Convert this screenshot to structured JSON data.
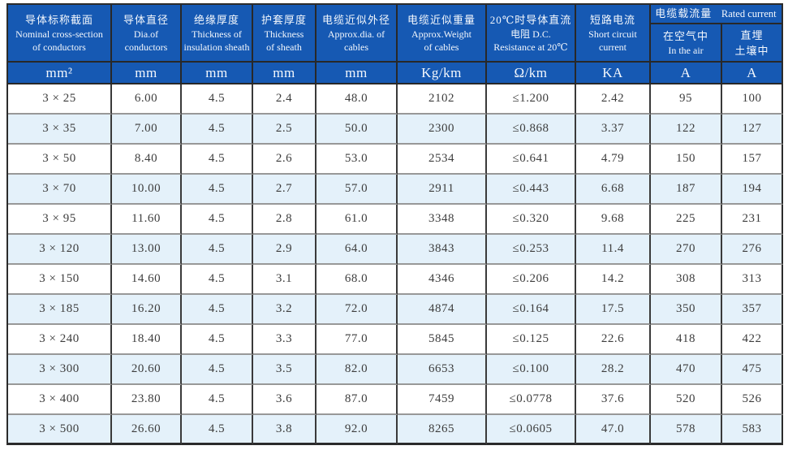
{
  "table": {
    "title_semantic": "cable-specification-table",
    "header": {
      "columns": [
        {
          "zh": "导体标称截面",
          "l2": "Nominal cross-section",
          "l3": "of conductors",
          "unit": "mm²"
        },
        {
          "zh": "导体直径",
          "l2": "Dia.of",
          "l3": "conductors",
          "unit": "mm"
        },
        {
          "zh": "绝缘厚度",
          "l2": "Thickness of",
          "l3": "insulation sheath",
          "unit": "mm"
        },
        {
          "zh": "护套厚度",
          "l2": "Thickness",
          "l3": "of sheath",
          "unit": "mm"
        },
        {
          "zh": "电缆近似外径",
          "l2": "Approx.dia. of",
          "l3": "cables",
          "unit": "mm"
        },
        {
          "zh": "电缆近似重量",
          "l2": "Approx.Weight",
          "l3": "of cables",
          "unit": "Kg/km"
        },
        {
          "zh": "20℃时导体直流",
          "l2": "电阻 D.C.",
          "l3": "Resistance at 20℃",
          "unit": "Ω/km"
        },
        {
          "zh": "短路电流",
          "l2": "Short circuit",
          "l3": "current",
          "unit": "KA"
        }
      ],
      "ampacity_group": {
        "zh": "电缆载流量",
        "en": "Rated current"
      },
      "sub_columns": [
        {
          "l1": "在空气中",
          "l2": "In the air",
          "unit": "A"
        },
        {
          "l1": "直埋",
          "l2": "土壤中",
          "unit": "A"
        }
      ]
    },
    "rows": [
      [
        "3 × 25",
        "6.00",
        "4.5",
        "2.4",
        "48.0",
        "2102",
        "≤1.200",
        "2.42",
        "95",
        "100"
      ],
      [
        "3 × 35",
        "7.00",
        "4.5",
        "2.5",
        "50.0",
        "2300",
        "≤0.868",
        "3.37",
        "122",
        "127"
      ],
      [
        "3 × 50",
        "8.40",
        "4.5",
        "2.6",
        "53.0",
        "2534",
        "≤0.641",
        "4.79",
        "150",
        "157"
      ],
      [
        "3 × 70",
        "10.00",
        "4.5",
        "2.7",
        "57.0",
        "2911",
        "≤0.443",
        "6.68",
        "187",
        "194"
      ],
      [
        "3 × 95",
        "11.60",
        "4.5",
        "2.8",
        "61.0",
        "3348",
        "≤0.320",
        "9.68",
        "225",
        "231"
      ],
      [
        "3 × 120",
        "13.00",
        "4.5",
        "2.9",
        "64.0",
        "3843",
        "≤0.253",
        "11.4",
        "270",
        "276"
      ],
      [
        "3 × 150",
        "14.60",
        "4.5",
        "3.1",
        "68.0",
        "4346",
        "≤0.206",
        "14.2",
        "308",
        "313"
      ],
      [
        "3 × 185",
        "16.20",
        "4.5",
        "3.2",
        "72.0",
        "4874",
        "≤0.164",
        "17.5",
        "350",
        "357"
      ],
      [
        "3 × 240",
        "18.40",
        "4.5",
        "3.3",
        "77.0",
        "5845",
        "≤0.125",
        "22.6",
        "418",
        "422"
      ],
      [
        "3 × 300",
        "20.60",
        "4.5",
        "3.5",
        "82.0",
        "6653",
        "≤0.100",
        "28.2",
        "470",
        "475"
      ],
      [
        "3 × 400",
        "23.80",
        "4.5",
        "3.6",
        "87.0",
        "7459",
        "≤0.0778",
        "37.6",
        "520",
        "526"
      ],
      [
        "3 × 500",
        "26.60",
        "4.5",
        "3.8",
        "92.0",
        "8265",
        "≤0.0605",
        "47.0",
        "578",
        "583"
      ]
    ],
    "colors": {
      "header_bg": "#1659b3",
      "stripe_bg": "#e4f1fa",
      "border_dark": "#2b2b2b",
      "border_gray": "#989898",
      "text_dark": "#3d3d3d",
      "header_text": "#f4f8fd"
    }
  }
}
